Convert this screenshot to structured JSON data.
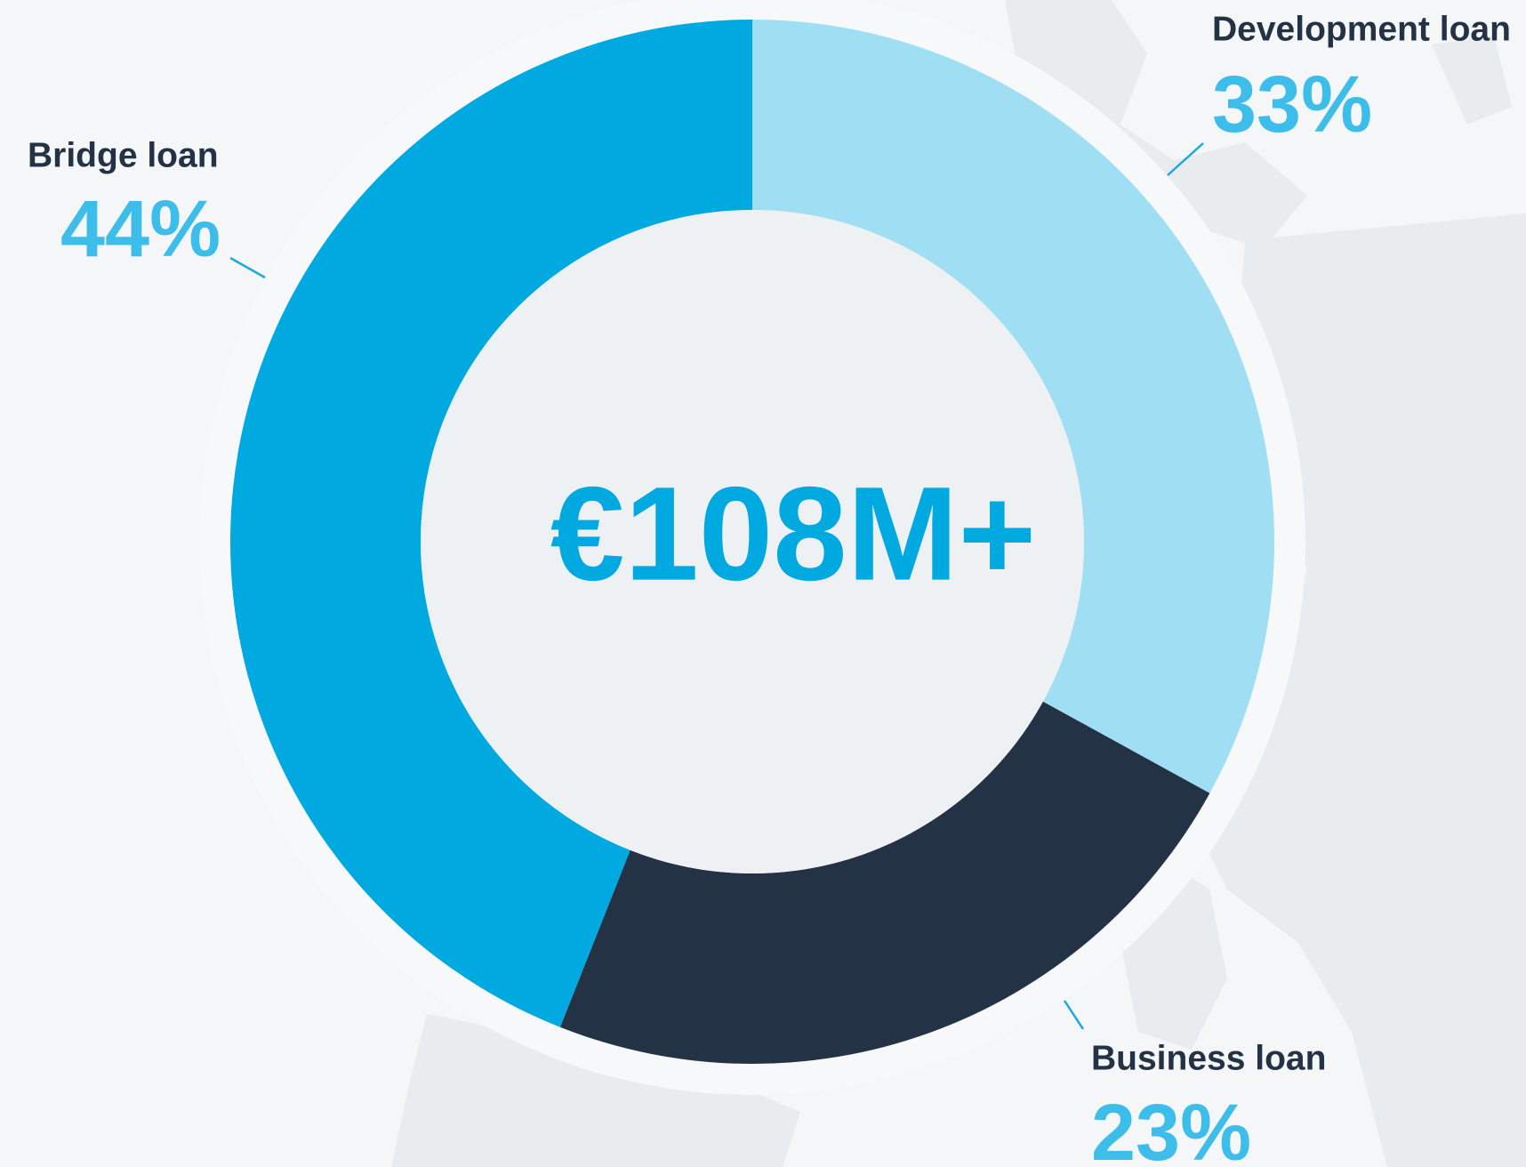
{
  "chart_data": {
    "type": "donut",
    "center_label": "€108M+",
    "categories": [
      "Development loan",
      "Business loan",
      "Bridge loan"
    ],
    "values": [
      33,
      23,
      44
    ],
    "value_labels": [
      "33%",
      "23%",
      "44%"
    ],
    "colors": [
      "#a0dff3",
      "#243245",
      "#00a9e0"
    ]
  }
}
